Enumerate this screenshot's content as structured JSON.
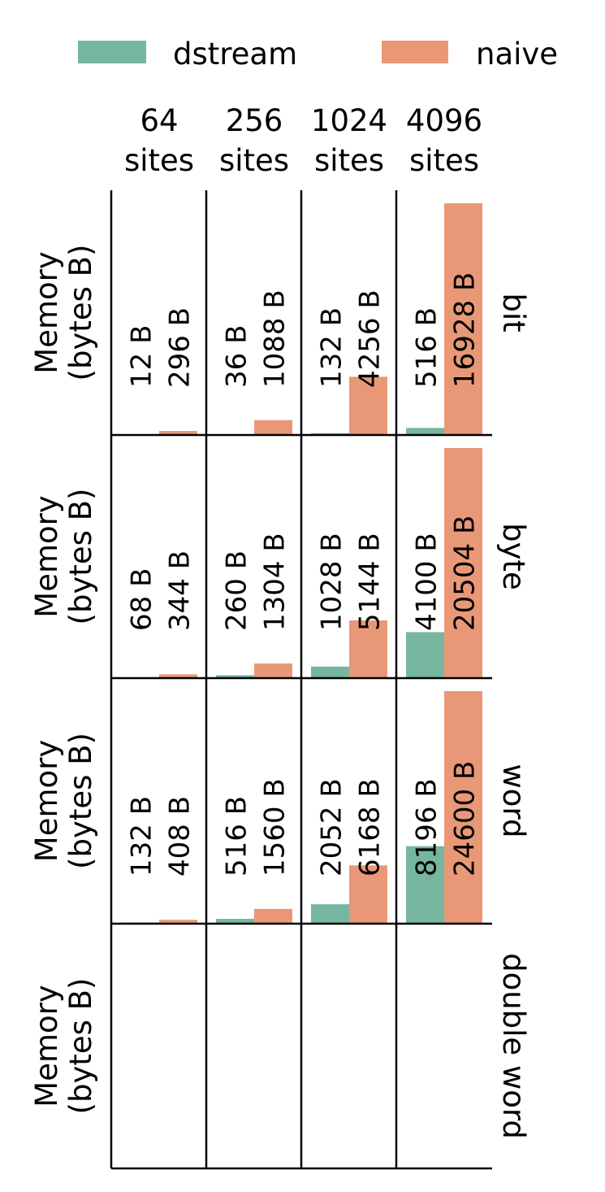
{
  "chart_data": {
    "type": "bar",
    "legend": {
      "placement": "top",
      "entries": [
        {
          "name": "dstream",
          "color": "#76b6a0"
        },
        {
          "name": "naive",
          "color": "#e99877"
        }
      ]
    },
    "column_labels": [
      {
        "line1": "64",
        "line2": "sites"
      },
      {
        "line1": "256",
        "line2": "sites"
      },
      {
        "line1": "1024",
        "line2": "sites"
      },
      {
        "line1": "4096",
        "line2": "sites"
      }
    ],
    "ylabel": {
      "line1": "Memory",
      "line2": "(bytes B)"
    },
    "grid": false,
    "series": [
      {
        "name": "dstream",
        "color": "#76b6a0",
        "label_color": "#000000"
      },
      {
        "name": "naive",
        "color": "#e99877",
        "label_color": "#ffffff"
      }
    ],
    "rows": [
      {
        "label": "bit",
        "panels": [
          {
            "values": [
              12,
              296
            ],
            "labels": [
              "12 B",
              "296 B"
            ]
          },
          {
            "values": [
              36,
              1088
            ],
            "labels": [
              "36 B",
              "1088 B"
            ]
          },
          {
            "values": [
              132,
              4256
            ],
            "labels": [
              "132 B",
              "4256 B"
            ]
          },
          {
            "values": [
              516,
              16928
            ],
            "labels": [
              "516 B",
              "16928 B"
            ]
          }
        ]
      },
      {
        "label": "byte",
        "panels": [
          {
            "values": [
              68,
              344
            ],
            "labels": [
              "68 B",
              "344 B"
            ]
          },
          {
            "values": [
              260,
              1304
            ],
            "labels": [
              "260 B",
              "1304 B"
            ]
          },
          {
            "values": [
              1028,
              5144
            ],
            "labels": [
              "1028 B",
              "5144 B"
            ]
          },
          {
            "values": [
              4100,
              20504
            ],
            "labels": [
              "4100 B",
              "20504 B"
            ]
          }
        ]
      },
      {
        "label": "word",
        "panels": [
          {
            "values": [
              132,
              408
            ],
            "labels": [
              "132 B",
              "408 B"
            ]
          },
          {
            "values": [
              516,
              1560
            ],
            "labels": [
              "516 B",
              "1560 B"
            ]
          },
          {
            "values": [
              2052,
              6168
            ],
            "labels": [
              "2052 B",
              "6168 B"
            ]
          },
          {
            "values": [
              8196,
              24600
            ],
            "labels": [
              "8196 B",
              "24600 B"
            ]
          }
        ]
      },
      {
        "label": "double word",
        "panels": [
          {
            "values": [],
            "labels": []
          },
          {
            "values": [],
            "labels": []
          },
          {
            "values": [],
            "labels": []
          },
          {
            "values": [],
            "labels": []
          }
        ]
      }
    ]
  }
}
